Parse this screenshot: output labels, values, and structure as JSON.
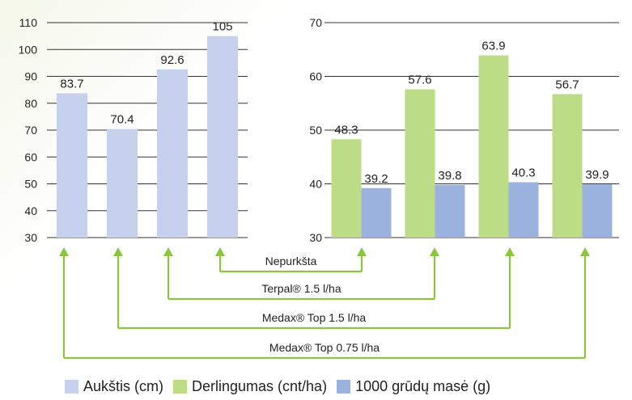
{
  "chart_data": [
    {
      "type": "bar",
      "categories": [
        "Nepurkšta",
        "Terpal® 1.5 l/ha",
        "Medax® Top 1.5 l/ha",
        "Medax® Top 0.75 l/ha"
      ],
      "category_order_in_chart": [
        3,
        2,
        1,
        0
      ],
      "series": [
        {
          "name": "Aukštis (cm)",
          "values": [
            105,
            92.6,
            70.4,
            83.7
          ],
          "color": "#c5d1ed"
        }
      ],
      "ylim": [
        30,
        110
      ],
      "yticks": [
        30,
        40,
        50,
        60,
        70,
        80,
        90,
        100,
        110
      ],
      "grid": true
    },
    {
      "type": "bar",
      "categories": [
        "Nepurkšta",
        "Terpal® 1.5 l/ha",
        "Medax® Top 1.5 l/ha",
        "Medax® Top 0.75 l/ha"
      ],
      "category_order_in_chart": [
        3,
        2,
        1,
        0
      ],
      "series": [
        {
          "name": "Derlingumas (cnt/ha)",
          "values": [
            56.7,
            63.9,
            57.6,
            48.3
          ],
          "color": "#bcdc85"
        },
        {
          "name": "1000 grūdų masė (g)",
          "values": [
            39.9,
            40.3,
            39.8,
            39.2
          ],
          "color": "#9cb2de"
        }
      ],
      "ylim": [
        30,
        70
      ],
      "yticks": [
        30,
        40,
        50,
        60,
        70
      ],
      "grid": true
    }
  ],
  "arrow_color": "#8cc63f",
  "connector_labels": [
    "Nepurkšta",
    "Terpal® 1.5 l/ha",
    "Medax® Top 1.5 l/ha",
    "Medax® Top 0.75 l/ha"
  ],
  "legend": [
    {
      "label": "Aukštis (cm)",
      "color": "#c5d1ed"
    },
    {
      "label": "Derlingumas (cnt/ha)",
      "color": "#bcdc85"
    },
    {
      "label": "1000 grūdų masė (g)",
      "color": "#9cb2de"
    }
  ]
}
